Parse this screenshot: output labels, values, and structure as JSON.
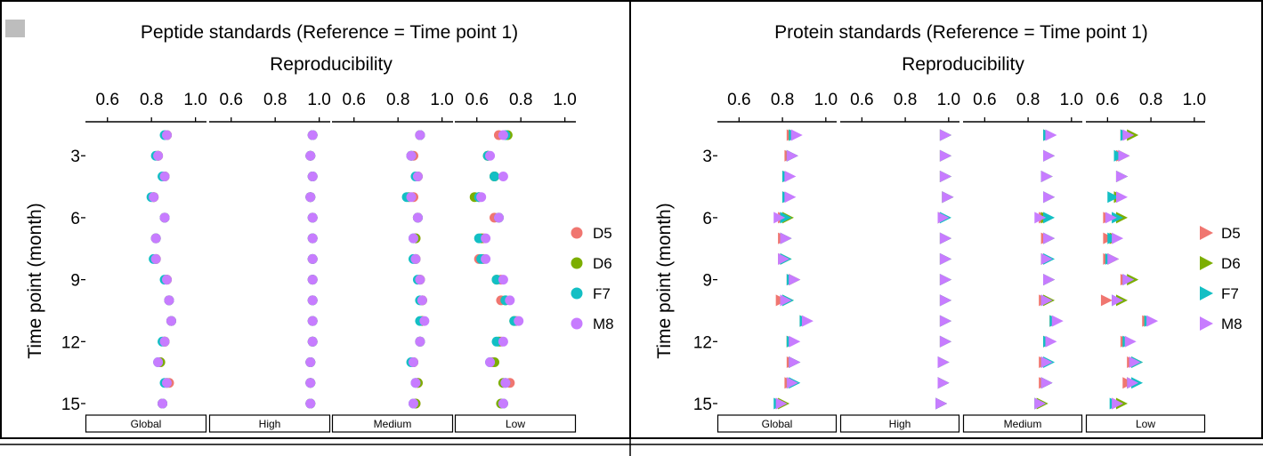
{
  "figure": {
    "corner_badge": ""
  },
  "chart_data": [
    {
      "type": "scatter",
      "title": "Peptide standards (Reference = Time point 1)",
      "xlabel": "Reproducibility",
      "ylabel": "Time point (month)",
      "marker": "circle",
      "xlim": [
        0.5,
        1.05
      ],
      "xticks": [
        0.6,
        0.8,
        1.0
      ],
      "xtick_labels": [
        "0.6",
        "0.8",
        "1.0"
      ],
      "ylim": [
        1.5,
        15.5
      ],
      "yticks": [
        3,
        6,
        9,
        12,
        15
      ],
      "ytick_labels": [
        "3",
        "6",
        "9",
        "12",
        "15"
      ],
      "legend": {
        "position": "right",
        "entries": [
          "D5",
          "D6",
          "F7",
          "M8"
        ]
      },
      "categories": [
        "Global",
        "High",
        "Medium",
        "Low"
      ],
      "x": [
        2,
        3,
        4,
        5,
        6,
        7,
        8,
        9,
        10,
        11,
        12,
        13,
        14,
        15
      ],
      "panels": [
        {
          "name": "Global",
          "series": [
            {
              "name": "D5",
              "values": [
                0.87,
                0.83,
                0.86,
                0.81,
                0.86,
                0.82,
                0.82,
                0.87,
                0.88,
                0.89,
                0.86,
                0.84,
                0.88,
                0.85
              ]
            },
            {
              "name": "D6",
              "values": [
                0.87,
                0.83,
                0.86,
                0.81,
                0.86,
                0.82,
                0.82,
                0.87,
                0.88,
                0.89,
                0.86,
                0.84,
                0.87,
                0.85
              ]
            },
            {
              "name": "F7",
              "values": [
                0.86,
                0.82,
                0.85,
                0.8,
                0.86,
                0.82,
                0.81,
                0.86,
                0.88,
                0.89,
                0.85,
                0.83,
                0.86,
                0.85
              ]
            },
            {
              "name": "M8",
              "values": [
                0.87,
                0.83,
                0.86,
                0.81,
                0.86,
                0.82,
                0.82,
                0.87,
                0.88,
                0.89,
                0.86,
                0.83,
                0.87,
                0.85
              ]
            }
          ]
        },
        {
          "name": "High",
          "series": [
            {
              "name": "D5",
              "values": [
                0.97,
                0.96,
                0.97,
                0.96,
                0.97,
                0.97,
                0.97,
                0.97,
                0.97,
                0.97,
                0.97,
                0.96,
                0.96,
                0.96
              ]
            },
            {
              "name": "D6",
              "values": [
                0.97,
                0.96,
                0.97,
                0.96,
                0.97,
                0.97,
                0.97,
                0.97,
                0.97,
                0.97,
                0.97,
                0.96,
                0.96,
                0.96
              ]
            },
            {
              "name": "F7",
              "values": [
                0.97,
                0.96,
                0.97,
                0.96,
                0.97,
                0.97,
                0.97,
                0.97,
                0.97,
                0.97,
                0.97,
                0.96,
                0.96,
                0.96
              ]
            },
            {
              "name": "M8",
              "values": [
                0.97,
                0.96,
                0.97,
                0.96,
                0.97,
                0.97,
                0.97,
                0.97,
                0.97,
                0.97,
                0.97,
                0.96,
                0.96,
                0.96
              ]
            }
          ]
        },
        {
          "name": "Medium",
          "series": [
            {
              "name": "D5",
              "values": [
                0.9,
                0.87,
                0.89,
                0.87,
                0.89,
                0.88,
                0.88,
                0.9,
                0.91,
                0.91,
                0.9,
                0.87,
                0.89,
                0.88
              ]
            },
            {
              "name": "D6",
              "values": [
                0.9,
                0.86,
                0.89,
                0.85,
                0.89,
                0.88,
                0.88,
                0.9,
                0.91,
                0.91,
                0.9,
                0.87,
                0.89,
                0.88
              ]
            },
            {
              "name": "F7",
              "values": [
                0.9,
                0.86,
                0.88,
                0.84,
                0.89,
                0.87,
                0.87,
                0.89,
                0.9,
                0.9,
                0.9,
                0.86,
                0.88,
                0.87
              ]
            },
            {
              "name": "M8",
              "values": [
                0.9,
                0.86,
                0.89,
                0.86,
                0.89,
                0.87,
                0.88,
                0.9,
                0.91,
                0.92,
                0.9,
                0.87,
                0.88,
                0.87
              ]
            }
          ]
        },
        {
          "name": "Low",
          "series": [
            {
              "name": "D5",
              "values": [
                0.7,
                0.65,
                0.68,
                0.61,
                0.68,
                0.63,
                0.61,
                0.71,
                0.71,
                0.78,
                0.71,
                0.67,
                0.75,
                0.72
              ]
            },
            {
              "name": "D6",
              "values": [
                0.74,
                0.65,
                0.68,
                0.59,
                0.7,
                0.62,
                0.63,
                0.69,
                0.73,
                0.77,
                0.7,
                0.68,
                0.72,
                0.71
              ]
            },
            {
              "name": "F7",
              "values": [
                0.73,
                0.65,
                0.68,
                0.61,
                0.7,
                0.61,
                0.62,
                0.69,
                0.73,
                0.77,
                0.69,
                0.66,
                0.73,
                0.72
              ]
            },
            {
              "name": "M8",
              "values": [
                0.72,
                0.66,
                0.72,
                0.62,
                0.7,
                0.64,
                0.64,
                0.72,
                0.75,
                0.79,
                0.72,
                0.66,
                0.73,
                0.72
              ]
            }
          ]
        }
      ]
    },
    {
      "type": "scatter",
      "title": "Protein standards (Reference = Time point 1)",
      "xlabel": "Reproducibility",
      "ylabel": "Time point (month)",
      "marker": "triangle-right",
      "xlim": [
        0.5,
        1.05
      ],
      "xticks": [
        0.6,
        0.8,
        1.0
      ],
      "xtick_labels": [
        "0.6",
        "0.8",
        "1.0"
      ],
      "ylim": [
        1.5,
        15.5
      ],
      "yticks": [
        3,
        6,
        9,
        12,
        15
      ],
      "ytick_labels": [
        "3",
        "6",
        "9",
        "12",
        "15"
      ],
      "legend": {
        "position": "right",
        "entries": [
          "D5",
          "D6",
          "F7",
          "M8"
        ]
      },
      "categories": [
        "Global",
        "High",
        "Medium",
        "Low"
      ],
      "x": [
        2,
        3,
        4,
        5,
        6,
        7,
        8,
        9,
        10,
        11,
        12,
        13,
        14,
        15
      ],
      "panels": [
        {
          "name": "Global",
          "series": [
            {
              "name": "D5",
              "values": [
                0.84,
                0.83,
                0.82,
                0.82,
                0.8,
                0.8,
                0.8,
                0.84,
                0.79,
                0.9,
                0.84,
                0.84,
                0.83,
                0.79
              ]
            },
            {
              "name": "D6",
              "values": [
                0.85,
                0.84,
                0.82,
                0.82,
                0.82,
                0.81,
                0.81,
                0.85,
                0.82,
                0.9,
                0.84,
                0.85,
                0.84,
                0.8
              ]
            },
            {
              "name": "F7",
              "values": [
                0.85,
                0.84,
                0.82,
                0.82,
                0.81,
                0.81,
                0.81,
                0.84,
                0.82,
                0.9,
                0.84,
                0.85,
                0.85,
                0.78
              ]
            },
            {
              "name": "M8",
              "values": [
                0.86,
                0.84,
                0.83,
                0.83,
                0.78,
                0.81,
                0.8,
                0.85,
                0.81,
                0.91,
                0.85,
                0.85,
                0.84,
                0.79
              ]
            }
          ]
        },
        {
          "name": "High",
          "series": [
            {
              "name": "D5",
              "values": [
                0.98,
                0.98,
                0.98,
                0.99,
                0.97,
                0.98,
                0.98,
                0.98,
                0.98,
                0.98,
                0.98,
                0.97,
                0.97,
                0.96
              ]
            },
            {
              "name": "D6",
              "values": [
                0.98,
                0.98,
                0.98,
                0.99,
                0.97,
                0.98,
                0.98,
                0.98,
                0.98,
                0.98,
                0.98,
                0.97,
                0.97,
                0.96
              ]
            },
            {
              "name": "F7",
              "values": [
                0.98,
                0.98,
                0.98,
                0.99,
                0.98,
                0.98,
                0.98,
                0.98,
                0.98,
                0.98,
                0.98,
                0.97,
                0.97,
                0.96
              ]
            },
            {
              "name": "M8",
              "values": [
                0.98,
                0.98,
                0.98,
                0.99,
                0.97,
                0.98,
                0.98,
                0.98,
                0.98,
                0.98,
                0.98,
                0.97,
                0.97,
                0.96
              ]
            }
          ]
        },
        {
          "name": "Medium",
          "series": [
            {
              "name": "D5",
              "values": [
                0.89,
                0.89,
                0.88,
                0.89,
                0.87,
                0.88,
                0.88,
                0.89,
                0.87,
                0.92,
                0.89,
                0.87,
                0.87,
                0.85
              ]
            },
            {
              "name": "D6",
              "values": [
                0.89,
                0.89,
                0.88,
                0.89,
                0.88,
                0.89,
                0.88,
                0.89,
                0.89,
                0.92,
                0.89,
                0.88,
                0.88,
                0.86
              ]
            },
            {
              "name": "F7",
              "values": [
                0.89,
                0.89,
                0.88,
                0.89,
                0.89,
                0.89,
                0.89,
                0.89,
                0.88,
                0.92,
                0.89,
                0.89,
                0.88,
                0.85
              ]
            },
            {
              "name": "M8",
              "values": [
                0.9,
                0.89,
                0.88,
                0.89,
                0.85,
                0.89,
                0.88,
                0.89,
                0.88,
                0.93,
                0.9,
                0.88,
                0.88,
                0.85
              ]
            }
          ]
        },
        {
          "name": "Low",
          "series": [
            {
              "name": "D5",
              "values": [
                0.68,
                0.66,
                0.66,
                0.65,
                0.6,
                0.6,
                0.6,
                0.68,
                0.59,
                0.78,
                0.68,
                0.71,
                0.69,
                0.64
              ]
            },
            {
              "name": "D6",
              "values": [
                0.71,
                0.67,
                0.66,
                0.65,
                0.66,
                0.63,
                0.62,
                0.71,
                0.66,
                0.79,
                0.69,
                0.73,
                0.71,
                0.66
              ]
            },
            {
              "name": "F7",
              "values": [
                0.68,
                0.65,
                0.66,
                0.62,
                0.64,
                0.62,
                0.61,
                0.69,
                0.64,
                0.79,
                0.69,
                0.73,
                0.73,
                0.63
              ]
            },
            {
              "name": "M8",
              "values": [
                0.69,
                0.67,
                0.66,
                0.66,
                0.61,
                0.64,
                0.62,
                0.69,
                0.64,
                0.8,
                0.7,
                0.72,
                0.71,
                0.64
              ]
            }
          ]
        }
      ]
    }
  ],
  "colors": {
    "D5": "#f07670",
    "D6": "#7cae00",
    "F7": "#13bfc4",
    "M8": "#c77cff"
  }
}
